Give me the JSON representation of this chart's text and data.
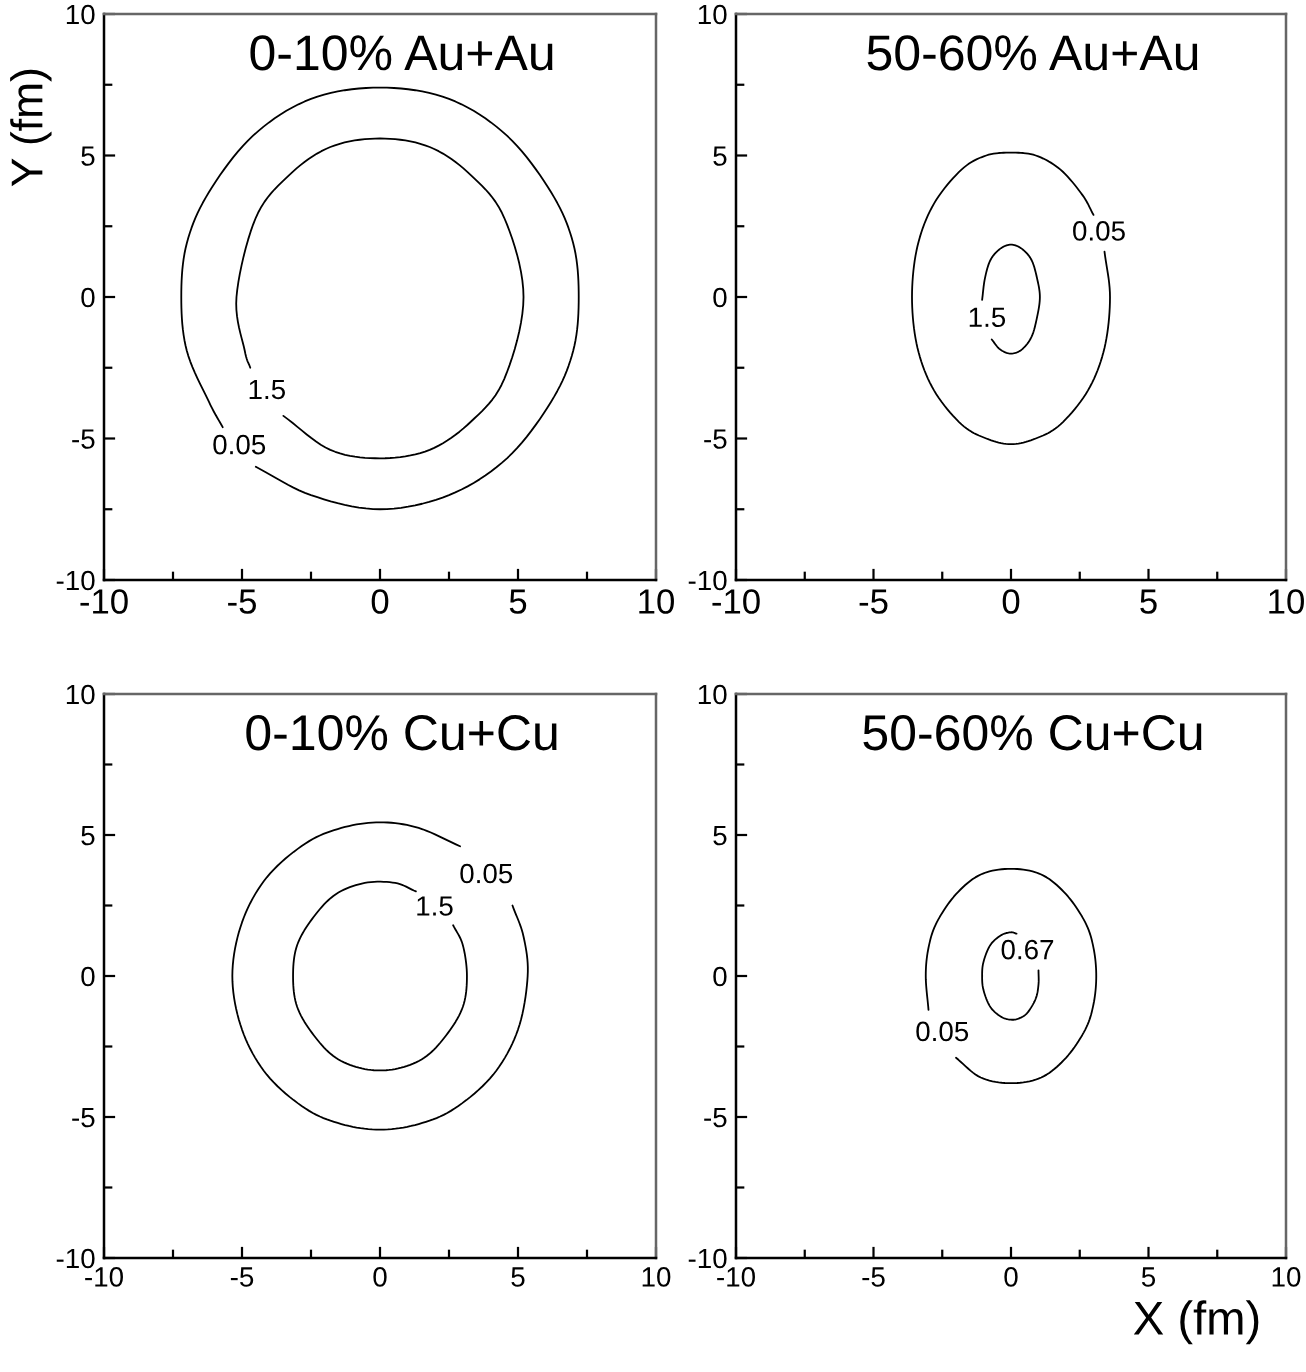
{
  "chart_data": [
    {
      "type": "line",
      "title": "0-10% Au+Au",
      "ylabel": "Y (fm)",
      "xlim": [
        -10,
        10
      ],
      "ylim": [
        -10,
        10
      ],
      "xticks": [
        -10,
        -5,
        0,
        5,
        10
      ],
      "yticks": [
        -10,
        -5,
        0,
        5,
        10
      ],
      "series": [
        {
          "name": "0.05",
          "color": "#000000",
          "x": [
            -4.5,
            -2.5,
            0,
            2.5,
            4.6,
            6.2,
            7.0,
            7.2,
            7.0,
            6.2,
            4.6,
            2.5,
            0,
            -2.5,
            -4.6,
            -6.2,
            -7.0,
            -7.2,
            -7.0,
            -6.2,
            -5.7
          ],
          "values": [
            -6.0,
            -7.0,
            -7.5,
            -7.0,
            -5.7,
            -3.7,
            -1.9,
            0,
            1.9,
            3.7,
            5.7,
            7.0,
            7.4,
            7.0,
            5.7,
            3.7,
            1.9,
            0,
            -1.9,
            -3.7,
            -4.6
          ]
        },
        {
          "name": "1.5",
          "color": "#000000",
          "x": [
            -3.5,
            -1.8,
            0,
            1.8,
            3.3,
            4.5,
            5.2,
            4.5,
            3.3,
            1.8,
            0,
            -1.8,
            -3.3,
            -4.5,
            -5.2,
            -4.9,
            -4.7
          ],
          "values": [
            -4.2,
            -5.4,
            -5.7,
            -5.4,
            -4.4,
            -2.9,
            0,
            2.8,
            4.3,
            5.3,
            5.6,
            5.3,
            4.3,
            2.8,
            0,
            -1.9,
            -2.5
          ]
        }
      ]
    },
    {
      "type": "line",
      "title": "50-60% Au+Au",
      "xlim": [
        -10,
        10
      ],
      "ylim": [
        -10,
        10
      ],
      "xticks": [
        -10,
        -5,
        0,
        5,
        10
      ],
      "yticks": [
        -10,
        -5,
        0,
        5,
        10
      ],
      "series": [
        {
          "name": "0.05",
          "color": "#000000",
          "x": [
            3.4,
            3.6,
            3.4,
            2.8,
            1.8,
            0.9,
            0,
            -0.9,
            -1.8,
            -2.8,
            -3.4,
            -3.6,
            -3.4,
            -2.8,
            -1.8,
            -0.9,
            0,
            0.9,
            1.8,
            2.6,
            3.0
          ],
          "values": [
            1.6,
            0,
            -1.8,
            -3.3,
            -4.5,
            -5.0,
            -5.2,
            -5.0,
            -4.5,
            -3.3,
            -1.8,
            0,
            1.8,
            3.3,
            4.5,
            5.0,
            5.1,
            5.0,
            4.5,
            3.6,
            2.9
          ]
        },
        {
          "name": "1.5",
          "color": "#000000",
          "x": [
            -0.7,
            -0.4,
            0,
            0.4,
            0.75,
            0.95,
            1.05,
            0.95,
            0.75,
            0.4,
            0,
            -0.4,
            -0.75,
            -0.95,
            -1.05
          ],
          "values": [
            -1.5,
            -1.85,
            -2.0,
            -1.85,
            -1.4,
            -0.7,
            0,
            0.65,
            1.3,
            1.7,
            1.85,
            1.7,
            1.3,
            0.65,
            -0.1
          ]
        }
      ]
    },
    {
      "type": "line",
      "title": "0-10% Cu+Cu",
      "xlim": [
        -10,
        10
      ],
      "ylim": [
        -10,
        10
      ],
      "xticks": [
        -10,
        -5,
        0,
        5,
        10
      ],
      "yticks": [
        -10,
        -5,
        0,
        5,
        10
      ],
      "series": [
        {
          "name": "0.05",
          "color": "#000000",
          "x": [
            4.8,
            5.2,
            5.35,
            5.0,
            4.1,
            2.7,
            1.4,
            0,
            -1.4,
            -2.7,
            -4.1,
            -5.0,
            -5.35,
            -5.0,
            -4.1,
            -2.7,
            -1.4,
            0,
            1.4,
            2.9
          ],
          "values": [
            2.5,
            1.4,
            0,
            -1.9,
            -3.5,
            -4.7,
            -5.25,
            -5.45,
            -5.25,
            -4.7,
            -3.5,
            -1.9,
            0,
            1.9,
            3.5,
            4.7,
            5.25,
            5.45,
            5.25,
            4.6
          ]
        },
        {
          "name": "1.5",
          "color": "#000000",
          "x": [
            2.65,
            3.0,
            3.15,
            3.0,
            2.4,
            1.6,
            0.55,
            -0.55,
            -1.6,
            -2.4,
            -3.0,
            -3.15,
            -3.0,
            -2.4,
            -1.6,
            -0.55,
            0.55,
            1.3
          ],
          "values": [
            1.8,
            1.1,
            0,
            -1.1,
            -2.1,
            -2.9,
            -3.3,
            -3.3,
            -2.9,
            -2.1,
            -1.1,
            0,
            1.1,
            2.1,
            2.9,
            3.3,
            3.3,
            3.0
          ]
        }
      ]
    },
    {
      "type": "line",
      "title": "50-60% Cu+Cu",
      "xlabel": "X (fm)",
      "xlim": [
        -10,
        10
      ],
      "ylim": [
        -10,
        10
      ],
      "xticks": [
        -10,
        -5,
        0,
        5,
        10
      ],
      "yticks": [
        -10,
        -5,
        0,
        5,
        10
      ],
      "series": [
        {
          "name": "0.05",
          "color": "#000000",
          "x": [
            -2.0,
            -1.1,
            0,
            1.1,
            2.0,
            2.7,
            3.0,
            3.1,
            3.0,
            2.7,
            2.0,
            1.1,
            0,
            -1.1,
            -2.0,
            -2.7,
            -3.0,
            -3.1,
            -3.0
          ],
          "values": [
            -2.9,
            -3.6,
            -3.8,
            -3.6,
            -2.9,
            -1.9,
            -1.0,
            0,
            1.0,
            1.9,
            2.9,
            3.6,
            3.8,
            3.6,
            2.9,
            1.9,
            1.0,
            0,
            -1.2
          ]
        },
        {
          "name": "0.67",
          "color": "#000000",
          "x": [
            1.0,
            1.0,
            0.9,
            0.6,
            0.3,
            0,
            -0.35,
            -0.75,
            -1.0,
            -1.05,
            -1.0,
            -0.75,
            -0.35,
            0,
            0.2
          ],
          "values": [
            0.2,
            -0.3,
            -0.8,
            -1.3,
            -1.5,
            -1.55,
            -1.45,
            -1.1,
            -0.5,
            0,
            0.5,
            1.1,
            1.45,
            1.55,
            1.5
          ]
        }
      ]
    }
  ]
}
